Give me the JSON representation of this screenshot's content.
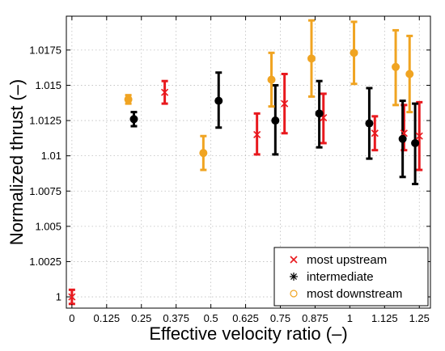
{
  "chart_data": {
    "type": "scatter",
    "title": "",
    "xlabel": "Effective velocity ratio (–)",
    "ylabel": "Normalized thrust (–)",
    "xlim": [
      -0.02,
      1.29
    ],
    "ylim": [
      0.9992,
      1.0199
    ],
    "grid": true,
    "legend_position": "bottom-right",
    "x_ticks": [
      0,
      0.125,
      0.25,
      0.375,
      0.5,
      0.625,
      0.75,
      0.875,
      1,
      1.125,
      1.25
    ],
    "x_tick_labels": [
      "0",
      "0.125",
      "0.25",
      "0.375",
      "0.5",
      "0.625",
      "0.75",
      "0.875",
      "1",
      "1.125",
      "1.25"
    ],
    "y_ticks": [
      1,
      1.0025,
      1.005,
      1.0075,
      1.01,
      1.0125,
      1.015,
      1.0175
    ],
    "y_tick_labels": [
      "1",
      "1.0025",
      "1.005",
      "1.0075",
      "1.01",
      "1.0125",
      "1.015",
      "1.0175"
    ],
    "series": [
      {
        "name": "most upstream",
        "color": "#e8191e",
        "marker": "x",
        "points": [
          {
            "x": 0.0,
            "y": 1.0,
            "low": 0.9995,
            "high": 1.0005
          },
          {
            "x": 0.334,
            "y": 1.0145,
            "low": 1.0137,
            "high": 1.0153
          },
          {
            "x": 0.666,
            "y": 1.0115,
            "low": 1.0101,
            "high": 1.013
          },
          {
            "x": 0.765,
            "y": 1.0137,
            "low": 1.0116,
            "high": 1.0158
          },
          {
            "x": 0.905,
            "y": 1.0127,
            "low": 1.0109,
            "high": 1.0144
          },
          {
            "x": 1.09,
            "y": 1.0116,
            "low": 1.0104,
            "high": 1.0128
          },
          {
            "x": 1.195,
            "y": 1.0116,
            "low": 1.0104,
            "high": 1.0136
          },
          {
            "x": 1.25,
            "y": 1.0114,
            "low": 1.009,
            "high": 1.0138
          }
        ]
      },
      {
        "name": "intermediate",
        "color": "#000000",
        "marker": "*",
        "points": [
          {
            "x": 0.223,
            "y": 1.0126,
            "low": 1.0121,
            "high": 1.0131
          },
          {
            "x": 0.528,
            "y": 1.0139,
            "low": 1.012,
            "high": 1.0159
          },
          {
            "x": 0.732,
            "y": 1.0125,
            "low": 1.0101,
            "high": 1.015
          },
          {
            "x": 0.89,
            "y": 1.013,
            "low": 1.0106,
            "high": 1.0153
          },
          {
            "x": 1.07,
            "y": 1.0123,
            "low": 1.0098,
            "high": 1.0148
          },
          {
            "x": 1.19,
            "y": 1.0112,
            "low": 1.0085,
            "high": 1.0139
          },
          {
            "x": 1.235,
            "y": 1.0109,
            "low": 1.008,
            "high": 1.0137
          }
        ]
      },
      {
        "name": "most downstream",
        "color": "#f0a422",
        "marker": "o",
        "points": [
          {
            "x": 0.203,
            "y": 1.014,
            "low": 1.0137,
            "high": 1.0143
          },
          {
            "x": 0.473,
            "y": 1.0102,
            "low": 1.009,
            "high": 1.0114
          },
          {
            "x": 0.718,
            "y": 1.0154,
            "low": 1.0135,
            "high": 1.0173
          },
          {
            "x": 0.862,
            "y": 1.0169,
            "low": 1.0142,
            "high": 1.0196
          },
          {
            "x": 1.015,
            "y": 1.0173,
            "low": 1.0151,
            "high": 1.0195
          },
          {
            "x": 1.165,
            "y": 1.0163,
            "low": 1.0136,
            "high": 1.0189
          },
          {
            "x": 1.215,
            "y": 1.0158,
            "low": 1.0131,
            "high": 1.0185
          }
        ]
      }
    ]
  }
}
